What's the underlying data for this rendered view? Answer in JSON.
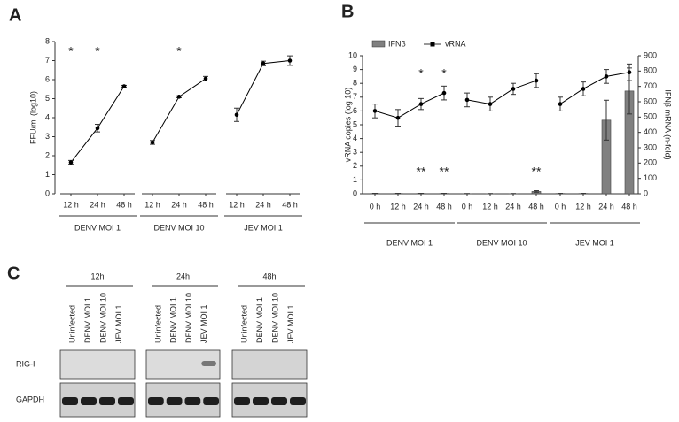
{
  "chart_data": [
    {
      "panel": "A",
      "type": "line",
      "y_label": "FFU/ml (log10)",
      "color": "#000000",
      "ylim": [
        0,
        8
      ],
      "yticks": [
        0,
        1,
        2,
        3,
        4,
        5,
        6,
        7,
        8
      ],
      "groups": [
        {
          "name": "DENV MOI 1",
          "categories": [
            "12 h",
            "24 h",
            "48 h"
          ],
          "values": [
            1.65,
            3.45,
            5.65
          ],
          "errors": [
            0.1,
            0.2,
            0.05
          ],
          "stars": [
            "*",
            "*",
            null
          ]
        },
        {
          "name": "DENV MOI 10",
          "categories": [
            "12 h",
            "24 h",
            "48 h"
          ],
          "values": [
            2.7,
            5.1,
            6.05
          ],
          "errors": [
            0.1,
            0.05,
            0.12
          ],
          "stars": [
            null,
            "*",
            null
          ]
        },
        {
          "name": "JEV MOI 1",
          "categories": [
            "12 h",
            "24 h",
            "48 h"
          ],
          "values": [
            4.15,
            6.85,
            7.0
          ],
          "errors": [
            0.35,
            0.12,
            0.25
          ],
          "stars": [
            null,
            null,
            null
          ]
        }
      ]
    },
    {
      "panel": "B",
      "type": "combo",
      "y_label": "vRNA copies (log 10)",
      "y2_label": "IFNβ mRNA (n-fold)",
      "ylim": [
        0,
        10
      ],
      "yticks": [
        0,
        1,
        2,
        3,
        4,
        5,
        6,
        7,
        8,
        9,
        10
      ],
      "y2lim": [
        0,
        900
      ],
      "y2ticks": [
        0,
        100,
        200,
        300,
        400,
        500,
        600,
        700,
        800,
        900
      ],
      "series": [
        {
          "name": "IFNβ",
          "color": "#808080",
          "axis": "y2"
        },
        {
          "name": "vRNA",
          "color": "#000000"
        }
      ],
      "groups": [
        {
          "name": "DENV MOI 1",
          "categories": [
            "0 h",
            "12 h",
            "24 h",
            "48 h"
          ],
          "series": [
            {
              "values": [
                2,
                2,
                2,
                2
              ],
              "errors": [
                0,
                0,
                0,
                0
              ]
            },
            {
              "values": [
                6.0,
                5.5,
                6.5,
                7.3
              ],
              "errors": [
                0.5,
                0.6,
                0.4,
                0.5
              ]
            }
          ],
          "stars_top": [
            null,
            null,
            "*",
            "*"
          ],
          "stars_bottom": [
            null,
            null,
            "**",
            "**"
          ]
        },
        {
          "name": "DENV MOI 10",
          "categories": [
            "0 h",
            "12 h",
            "24 h",
            "48 h"
          ],
          "series": [
            {
              "values": [
                1,
                1,
                1,
                15
              ],
              "errors": [
                0,
                0,
                0,
                5
              ]
            },
            {
              "values": [
                6.8,
                6.5,
                7.6,
                8.2
              ],
              "errors": [
                0.5,
                0.5,
                0.4,
                0.5
              ]
            }
          ],
          "stars_top": [
            null,
            null,
            null,
            null
          ],
          "stars_bottom": [
            null,
            null,
            null,
            "**"
          ]
        },
        {
          "name": "JEV MOI 1",
          "categories": [
            "0 h",
            "12 h",
            "24 h",
            "48 h"
          ],
          "series": [
            {
              "values": [
                2,
                2,
                480,
                670
              ],
              "errors": [
                0,
                0,
                130,
                150
              ]
            },
            {
              "values": [
                6.5,
                7.6,
                8.5,
                8.8
              ],
              "errors": [
                0.5,
                0.5,
                0.5,
                0.6
              ]
            }
          ],
          "stars_top": [
            null,
            null,
            null,
            null
          ],
          "stars_bottom": [
            null,
            null,
            null,
            null
          ]
        }
      ]
    }
  ],
  "blot": {
    "panel": "C",
    "times": [
      "12h",
      "24h",
      "48h"
    ],
    "lanes": [
      "Uninfected",
      "DENV MOI 1",
      "DENV MOI 10",
      "JEV MOI 1"
    ],
    "rows": [
      "RIG-I",
      "GAPDH"
    ]
  }
}
